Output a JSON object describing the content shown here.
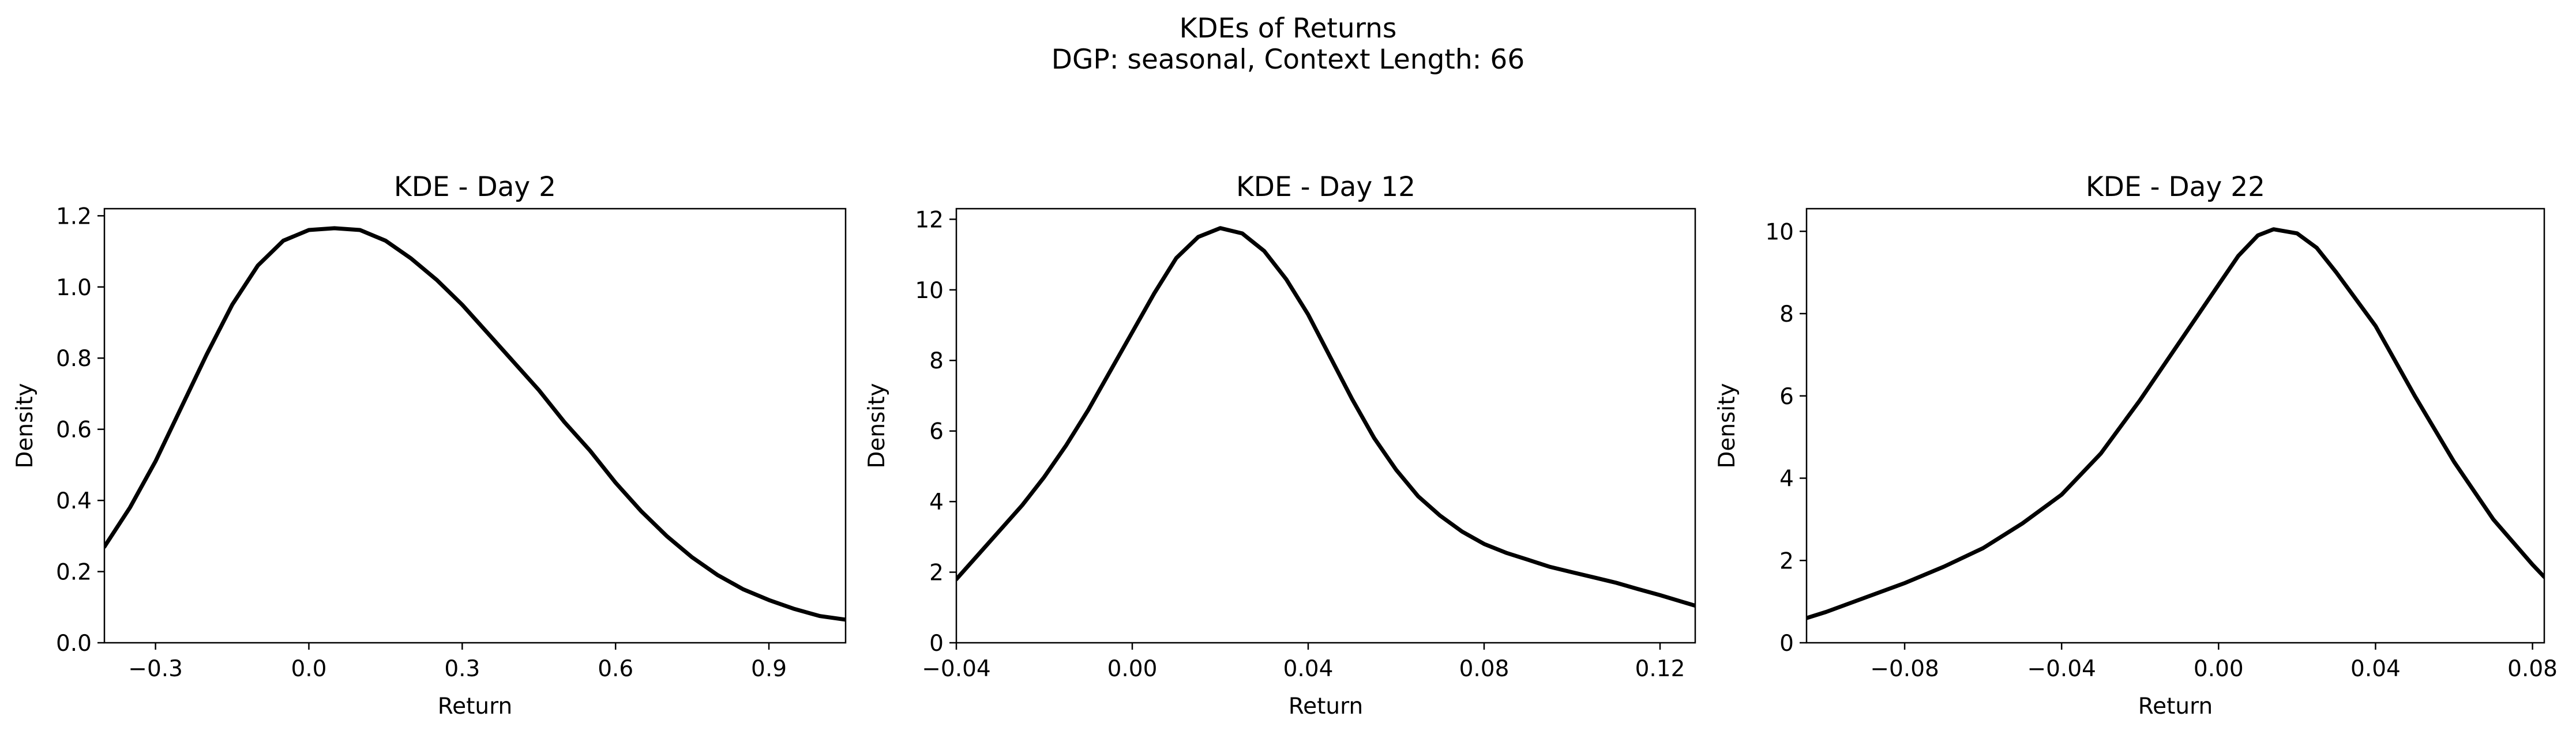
{
  "figure": {
    "title": "KDEs of Returns",
    "subtitle": "DGP: seasonal, Context Length: 66"
  },
  "chart_data": [
    {
      "type": "line",
      "title": "KDE - Day 2",
      "xlabel": "Return",
      "ylabel": "Density",
      "xlim": [
        -0.4,
        1.05
      ],
      "ylim": [
        0,
        1.22
      ],
      "xticks": [
        -0.3,
        0.0,
        0.3,
        0.6,
        0.9
      ],
      "xtick_labels": [
        "−0.3",
        "0.0",
        "0.3",
        "0.6",
        "0.9"
      ],
      "yticks": [
        0.0,
        0.2,
        0.4,
        0.6,
        0.8,
        1.0,
        1.2
      ],
      "ytick_labels": [
        "0.0",
        "0.2",
        "0.4",
        "0.6",
        "0.8",
        "1.0",
        "1.2"
      ],
      "line_color": "#000000",
      "series": [
        {
          "x": [
            -0.4,
            -0.35,
            -0.3,
            -0.25,
            -0.2,
            -0.15,
            -0.1,
            -0.05,
            0.0,
            0.05,
            0.1,
            0.15,
            0.2,
            0.25,
            0.3,
            0.35,
            0.4,
            0.45,
            0.5,
            0.55,
            0.6,
            0.65,
            0.7,
            0.75,
            0.8,
            0.85,
            0.9,
            0.95,
            1.0,
            1.05
          ],
          "y": [
            0.27,
            0.38,
            0.51,
            0.66,
            0.81,
            0.95,
            1.06,
            1.13,
            1.16,
            1.165,
            1.16,
            1.13,
            1.08,
            1.02,
            0.95,
            0.87,
            0.79,
            0.71,
            0.62,
            0.54,
            0.45,
            0.37,
            0.3,
            0.24,
            0.19,
            0.15,
            0.12,
            0.095,
            0.075,
            0.065
          ]
        }
      ]
    },
    {
      "type": "line",
      "title": "KDE - Day 12",
      "xlabel": "Return",
      "ylabel": "Density",
      "xlim": [
        -0.04,
        0.128
      ],
      "ylim": [
        0,
        12.3
      ],
      "xticks": [
        -0.04,
        0.0,
        0.04,
        0.08,
        0.12
      ],
      "xtick_labels": [
        "−0.04",
        "0.00",
        "0.04",
        "0.08",
        "0.12"
      ],
      "yticks": [
        0,
        2,
        4,
        6,
        8,
        10,
        12
      ],
      "ytick_labels": [
        "0",
        "2",
        "4",
        "6",
        "8",
        "10",
        "12"
      ],
      "line_color": "#000000",
      "series": [
        {
          "x": [
            -0.04,
            -0.035,
            -0.03,
            -0.025,
            -0.02,
            -0.015,
            -0.01,
            -0.005,
            0.0,
            0.005,
            0.01,
            0.015,
            0.02,
            0.025,
            0.03,
            0.035,
            0.04,
            0.045,
            0.05,
            0.055,
            0.06,
            0.065,
            0.07,
            0.075,
            0.08,
            0.085,
            0.09,
            0.095,
            0.1,
            0.105,
            0.11,
            0.115,
            0.12,
            0.128
          ],
          "y": [
            1.8,
            2.5,
            3.2,
            3.9,
            4.7,
            5.6,
            6.6,
            7.7,
            8.8,
            9.9,
            10.9,
            11.5,
            11.75,
            11.6,
            11.1,
            10.3,
            9.3,
            8.1,
            6.9,
            5.8,
            4.9,
            4.15,
            3.6,
            3.15,
            2.8,
            2.55,
            2.35,
            2.15,
            2.0,
            1.85,
            1.7,
            1.52,
            1.35,
            1.05
          ]
        }
      ]
    },
    {
      "type": "line",
      "title": "KDE - Day 22",
      "xlabel": "Return",
      "ylabel": "Density",
      "xlim": [
        -0.105,
        0.083
      ],
      "ylim": [
        0,
        10.55
      ],
      "xticks": [
        -0.08,
        -0.04,
        0.0,
        0.04,
        0.08
      ],
      "xtick_labels": [
        "−0.08",
        "−0.04",
        "0.00",
        "0.04",
        "0.08"
      ],
      "yticks": [
        0,
        2,
        4,
        6,
        8,
        10
      ],
      "ytick_labels": [
        "0",
        "2",
        "4",
        "6",
        "8",
        "10"
      ],
      "line_color": "#000000",
      "series": [
        {
          "x": [
            -0.105,
            -0.1,
            -0.09,
            -0.08,
            -0.07,
            -0.06,
            -0.05,
            -0.04,
            -0.03,
            -0.02,
            -0.01,
            0.0,
            0.005,
            0.01,
            0.014,
            0.02,
            0.025,
            0.03,
            0.04,
            0.05,
            0.06,
            0.07,
            0.08,
            0.083
          ],
          "y": [
            0.6,
            0.75,
            1.1,
            1.45,
            1.85,
            2.3,
            2.9,
            3.6,
            4.6,
            5.9,
            7.3,
            8.7,
            9.4,
            9.9,
            10.05,
            9.95,
            9.6,
            9.0,
            7.7,
            6.0,
            4.4,
            3.0,
            1.9,
            1.6
          ]
        }
      ]
    }
  ]
}
